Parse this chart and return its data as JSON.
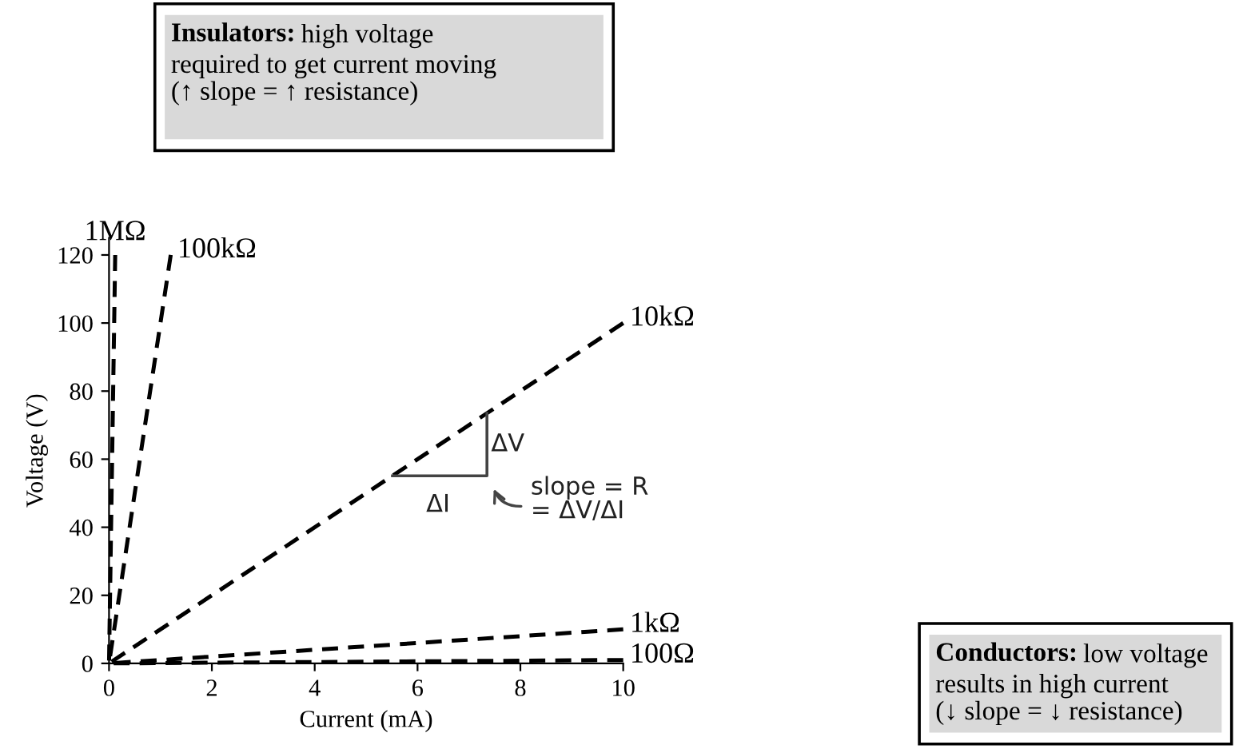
{
  "chart_data": {
    "type": "line",
    "xlabel": "Current (mA)",
    "ylabel": "Voltage (V)",
    "xlim": [
      0,
      10
    ],
    "ylim": [
      0,
      125
    ],
    "xticks": [
      0,
      2,
      4,
      6,
      8,
      10
    ],
    "yticks": [
      0,
      20,
      40,
      60,
      80,
      100,
      120
    ],
    "grid": false,
    "line_style": "dashed",
    "marker": "none",
    "series": [
      {
        "name": "1MΩ",
        "color": "#000000",
        "x": [
          0,
          0.12
        ],
        "values": [
          0,
          120
        ]
      },
      {
        "name": "100kΩ",
        "color": "#000000",
        "x": [
          0,
          1.2
        ],
        "values": [
          0,
          120
        ]
      },
      {
        "name": "10kΩ",
        "color": "#000000",
        "x": [
          0,
          10
        ],
        "values": [
          0,
          100
        ]
      },
      {
        "name": "1kΩ",
        "color": "#000000",
        "x": [
          0,
          10
        ],
        "values": [
          0,
          10
        ]
      },
      {
        "name": "100Ω",
        "color": "#000000",
        "x": [
          0,
          10
        ],
        "values": [
          0,
          1
        ]
      }
    ],
    "annotations": [
      "Insulators: high voltage\nrequired to get current moving\n(↑ slope = ↑ resistance)",
      "Conductors: low voltage\nresults in high current\n(↓ slope = ↓ resistance)",
      {
        "text": "ΔV",
        "x": 7.35,
        "y": 73.5
      },
      "ΔI",
      "slope = R\n= ΔV/ΔI"
    ]
  }
}
